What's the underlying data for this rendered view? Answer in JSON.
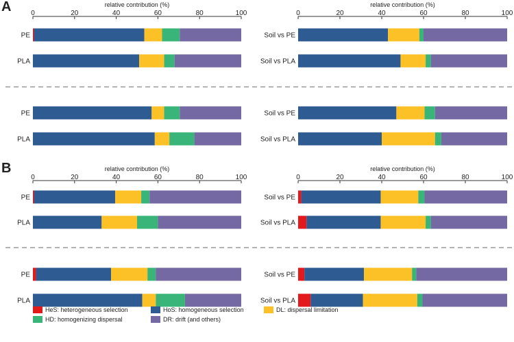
{
  "panel_labels": [
    "A",
    "B"
  ],
  "colors": {
    "HeS": "#e31a1c",
    "HoS": "#2e5c92",
    "DL": "#fbc127",
    "HD": "#3ab579",
    "DR": "#7469a3",
    "separator": "#9a9a9a",
    "axis": "#333333"
  },
  "legend": [
    {
      "key": "HeS",
      "label": "HeS: heterogeneous selection"
    },
    {
      "key": "HoS",
      "label": "HoS: homogeneous selection"
    },
    {
      "key": "DL",
      "label": "DL: dispersal limitation"
    },
    {
      "key": "HD",
      "label": "HD: homogenizing dispersal"
    },
    {
      "key": "DR",
      "label": "DR: drift (and others)"
    }
  ],
  "chart_data": [
    {
      "type": "bar",
      "orientation": "horizontal",
      "stacked": true,
      "panel": "A",
      "position": "left",
      "xlabel": "relative contribution (%)",
      "xlim": [
        0,
        100
      ],
      "xticks": [
        0,
        20,
        40,
        60,
        80,
        100
      ],
      "groups": [
        {
          "categories": [
            "PE",
            "PLA"
          ],
          "series": [
            {
              "name": "HeS",
              "values": [
                0.5,
                0
              ]
            },
            {
              "name": "HoS",
              "values": [
                53,
                51
              ]
            },
            {
              "name": "DL",
              "values": [
                8.5,
                12
              ]
            },
            {
              "name": "HD",
              "values": [
                8.5,
                5
              ]
            },
            {
              "name": "DR",
              "values": [
                29.5,
                32
              ]
            }
          ]
        },
        {
          "categories": [
            "PE",
            "PLA"
          ],
          "series": [
            {
              "name": "HeS",
              "values": [
                0,
                0
              ]
            },
            {
              "name": "HoS",
              "values": [
                57,
                58.5
              ]
            },
            {
              "name": "DL",
              "values": [
                6,
                7
              ]
            },
            {
              "name": "HD",
              "values": [
                7.5,
                12
              ]
            },
            {
              "name": "DR",
              "values": [
                29.5,
                22.5
              ]
            }
          ]
        }
      ]
    },
    {
      "type": "bar",
      "orientation": "horizontal",
      "stacked": true,
      "panel": "A",
      "position": "right",
      "xlabel": "relative contribution (%)",
      "xlim": [
        0,
        100
      ],
      "xticks": [
        0,
        20,
        40,
        60,
        80,
        100
      ],
      "groups": [
        {
          "categories": [
            "Soil vs PE",
            "Soil vs PLA"
          ],
          "series": [
            {
              "name": "HeS",
              "values": [
                0,
                0
              ]
            },
            {
              "name": "HoS",
              "values": [
                43,
                49
              ]
            },
            {
              "name": "DL",
              "values": [
                15,
                12
              ]
            },
            {
              "name": "HD",
              "values": [
                2,
                2.5
              ]
            },
            {
              "name": "DR",
              "values": [
                40,
                36.5
              ]
            }
          ]
        },
        {
          "categories": [
            "Soil vs PE",
            "Soil vs PLA"
          ],
          "series": [
            {
              "name": "HeS",
              "values": [
                0,
                0
              ]
            },
            {
              "name": "HoS",
              "values": [
                47,
                40
              ]
            },
            {
              "name": "DL",
              "values": [
                13.5,
                25.5
              ]
            },
            {
              "name": "HD",
              "values": [
                5,
                3
              ]
            },
            {
              "name": "DR",
              "values": [
                34.5,
                31.5
              ]
            }
          ]
        }
      ]
    },
    {
      "type": "bar",
      "orientation": "horizontal",
      "stacked": true,
      "panel": "B",
      "position": "left",
      "xlabel": "relative contribution (%)",
      "xlim": [
        0,
        100
      ],
      "xticks": [
        0,
        20,
        40,
        60,
        80,
        100
      ],
      "groups": [
        {
          "categories": [
            "PE",
            "PLA"
          ],
          "series": [
            {
              "name": "HeS",
              "values": [
                0.5,
                0
              ]
            },
            {
              "name": "HoS",
              "values": [
                39,
                33
              ]
            },
            {
              "name": "DL",
              "values": [
                12.5,
                17
              ]
            },
            {
              "name": "HD",
              "values": [
                4,
                10
              ]
            },
            {
              "name": "DR",
              "values": [
                44,
                40
              ]
            }
          ]
        },
        {
          "categories": [
            "PE",
            "PLA"
          ],
          "series": [
            {
              "name": "HeS",
              "values": [
                1.5,
                0
              ]
            },
            {
              "name": "HoS",
              "values": [
                36,
                52.5
              ]
            },
            {
              "name": "DL",
              "values": [
                17.5,
                6.5
              ]
            },
            {
              "name": "HD",
              "values": [
                4,
                14
              ]
            },
            {
              "name": "DR",
              "values": [
                41,
                27
              ]
            }
          ]
        }
      ]
    },
    {
      "type": "bar",
      "orientation": "horizontal",
      "stacked": true,
      "panel": "B",
      "position": "right",
      "xlabel": "relative contribution (%)",
      "xlim": [
        0,
        100
      ],
      "xticks": [
        0,
        20,
        40,
        60,
        80,
        100
      ],
      "groups": [
        {
          "categories": [
            "Soil vs PE",
            "Soil vs PLA"
          ],
          "series": [
            {
              "name": "HeS",
              "values": [
                1.5,
                4
              ]
            },
            {
              "name": "HoS",
              "values": [
                38,
                35.5
              ]
            },
            {
              "name": "DL",
              "values": [
                18,
                21.5
              ]
            },
            {
              "name": "HD",
              "values": [
                3,
                2.5
              ]
            },
            {
              "name": "DR",
              "values": [
                39.5,
                36.5
              ]
            }
          ]
        },
        {
          "categories": [
            "Soil vs PE",
            "Soil vs PLA"
          ],
          "series": [
            {
              "name": "HeS",
              "values": [
                3,
                6
              ]
            },
            {
              "name": "HoS",
              "values": [
                28.5,
                25
              ]
            },
            {
              "name": "DL",
              "values": [
                23,
                26
              ]
            },
            {
              "name": "HD",
              "values": [
                2,
                2.5
              ]
            },
            {
              "name": "DR",
              "values": [
                43.5,
                40.5
              ]
            }
          ]
        }
      ]
    }
  ]
}
